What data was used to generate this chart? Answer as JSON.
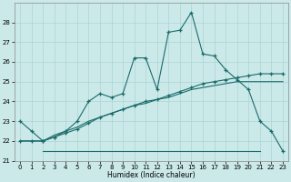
{
  "xlabel": "Humidex (Indice chaleur)",
  "background_color": "#cce9e9",
  "grid_color": "#aad4d4",
  "line_color": "#1a6b6b",
  "xlim": [
    -0.5,
    23.5
  ],
  "ylim": [
    21.0,
    29.0
  ],
  "yticks": [
    21,
    22,
    23,
    24,
    25,
    26,
    27,
    28
  ],
  "xticks": [
    0,
    1,
    2,
    3,
    4,
    5,
    6,
    7,
    8,
    9,
    10,
    11,
    12,
    13,
    14,
    15,
    16,
    17,
    18,
    19,
    20,
    21,
    22,
    23
  ],
  "series1_x": [
    0,
    1,
    2,
    3,
    4,
    5,
    6,
    7,
    8,
    9,
    10,
    11,
    12,
    13,
    14,
    15,
    16,
    17,
    18,
    19,
    20,
    21,
    22,
    23
  ],
  "series1_y": [
    23.0,
    22.5,
    22.0,
    22.2,
    22.5,
    23.0,
    24.0,
    24.4,
    24.2,
    24.4,
    26.2,
    26.2,
    24.6,
    27.5,
    27.6,
    28.5,
    26.4,
    26.3,
    25.6,
    25.1,
    24.6,
    23.0,
    22.5,
    21.5
  ],
  "series2_x": [
    0,
    1,
    2,
    3,
    4,
    5,
    6,
    7,
    8,
    9,
    10,
    11,
    12,
    13,
    14,
    15,
    16,
    17,
    18,
    19,
    20,
    21,
    22,
    23
  ],
  "series2_y": [
    22.0,
    22.0,
    22.0,
    22.2,
    22.4,
    22.6,
    22.9,
    23.2,
    23.4,
    23.6,
    23.8,
    24.0,
    24.1,
    24.3,
    24.5,
    24.7,
    24.9,
    25.0,
    25.1,
    25.2,
    25.3,
    25.4,
    25.4,
    25.4
  ],
  "series3_x": [
    0,
    1,
    2,
    3,
    4,
    5,
    6,
    7,
    8,
    9,
    10,
    11,
    12,
    13,
    14,
    15,
    16,
    17,
    18,
    19,
    20,
    21,
    22,
    23
  ],
  "series3_y": [
    22.0,
    22.0,
    22.0,
    22.3,
    22.5,
    22.7,
    23.0,
    23.2,
    23.4,
    23.6,
    23.8,
    23.9,
    24.1,
    24.2,
    24.4,
    24.6,
    24.7,
    24.8,
    24.9,
    25.0,
    25.0,
    25.0,
    25.0,
    25.0
  ],
  "series4_x": [
    2,
    21
  ],
  "series4_y": [
    21.5,
    21.5
  ],
  "figwidth": 3.2,
  "figheight": 2.0,
  "dpi": 100
}
